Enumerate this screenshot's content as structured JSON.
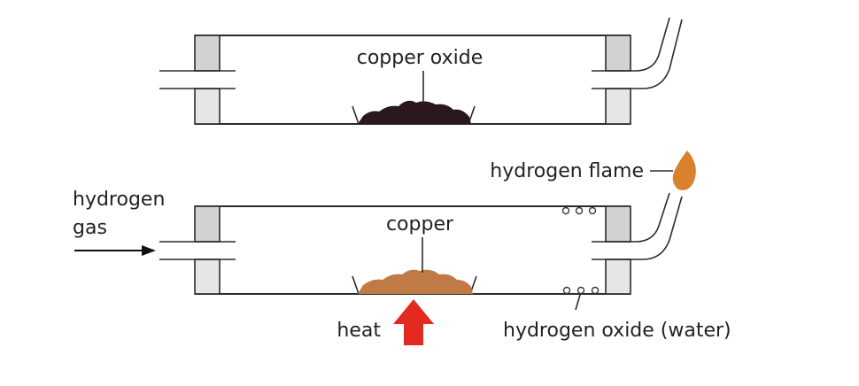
{
  "top_apparatus": {
    "label": "copper oxide",
    "substance_color": "#2a1720"
  },
  "bottom_apparatus": {
    "label_copper": "copper",
    "label_inlet_line1": "hydrogen",
    "label_inlet_line2": "gas",
    "label_flame": "hydrogen flame",
    "label_heat": "heat",
    "label_water": "hydrogen oxide (water)",
    "substance_color": "#c07a45",
    "flame_color": "#d9822b",
    "heat_arrow_color": "#e32a21"
  }
}
